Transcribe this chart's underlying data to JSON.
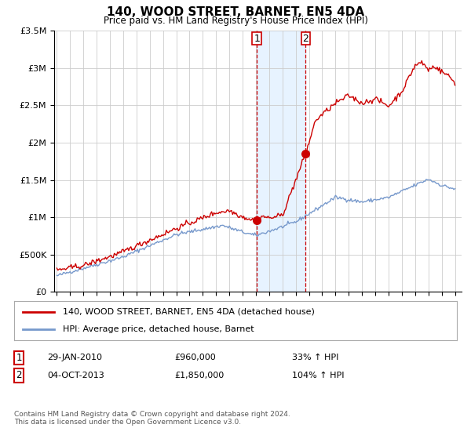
{
  "title": "140, WOOD STREET, BARNET, EN5 4DA",
  "subtitle": "Price paid vs. HM Land Registry's House Price Index (HPI)",
  "legend_line1": "140, WOOD STREET, BARNET, EN5 4DA (detached house)",
  "legend_line2": "HPI: Average price, detached house, Barnet",
  "annotation1_label": "1",
  "annotation1_date": "29-JAN-2010",
  "annotation1_price": "£960,000",
  "annotation1_hpi": "33% ↑ HPI",
  "annotation2_label": "2",
  "annotation2_date": "04-OCT-2013",
  "annotation2_price": "£1,850,000",
  "annotation2_hpi": "104% ↑ HPI",
  "footer": "Contains HM Land Registry data © Crown copyright and database right 2024.\nThis data is licensed under the Open Government Licence v3.0.",
  "sale1_year": 2010.07,
  "sale1_value": 960000,
  "sale2_year": 2013.75,
  "sale2_value": 1850000,
  "hpi_color": "#7799cc",
  "price_color": "#cc0000",
  "shade_color": "#ddeeff",
  "ylim_max": 3500000,
  "ylim_min": 0,
  "xmin": 1994.8,
  "xmax": 2025.5
}
